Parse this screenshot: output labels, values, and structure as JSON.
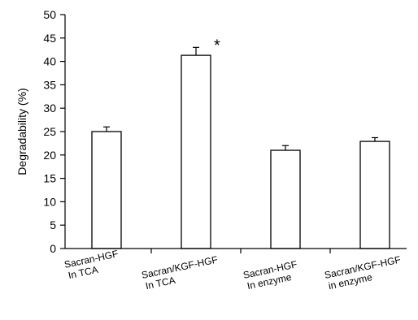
{
  "chart_data": {
    "type": "bar",
    "title": "",
    "xlabel": "",
    "ylabel": "Degradability (%)",
    "ylim": [
      0,
      50
    ],
    "yticks": [
      0,
      5,
      10,
      15,
      20,
      25,
      30,
      35,
      40,
      45,
      50
    ],
    "categories": [
      [
        "Sacran-HGF",
        "In TCA"
      ],
      [
        "Sacran/KGF-HGF",
        "In TCA"
      ],
      [
        "Sacran-HGF",
        "In enzyme"
      ],
      [
        "Sacran/KGF-HGF",
        "in enzyme"
      ]
    ],
    "values": [
      25,
      41.3,
      21,
      22.9
    ],
    "errors": [
      1.0,
      1.7,
      1.0,
      0.8
    ],
    "annotations": [
      "",
      "*",
      "",
      ""
    ],
    "bar_fill": "#ffffff",
    "bar_stroke": "#000000",
    "grid": false,
    "legend": "none"
  }
}
